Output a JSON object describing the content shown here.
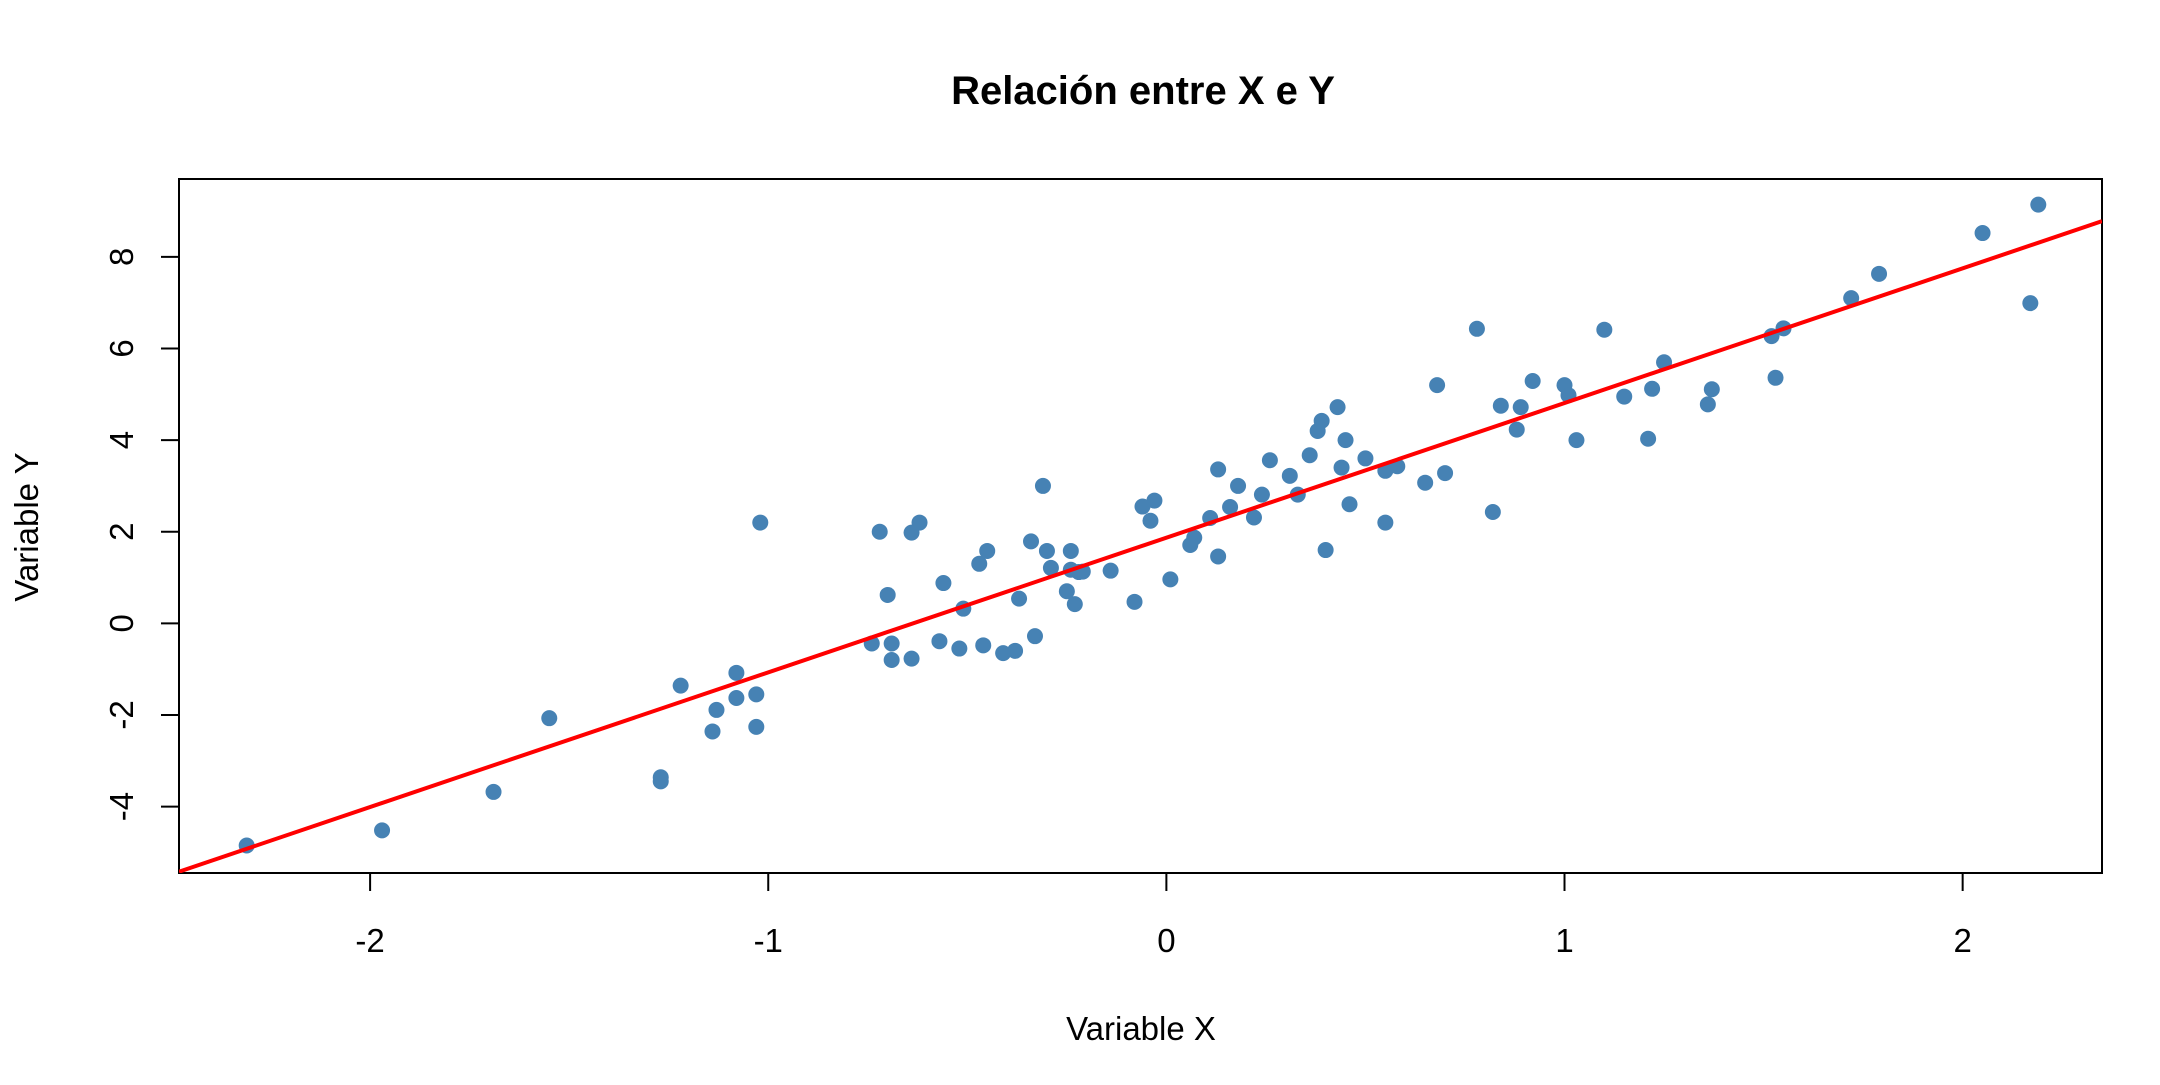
{
  "colors": {
    "points": "#4682B4",
    "regression_line": "#FF0000",
    "axes": "#000000",
    "background": "#FFFFFF"
  },
  "chart_data": {
    "type": "scatter",
    "title": "Relación entre X e Y",
    "xlabel": "Variable X",
    "ylabel": "Variable Y",
    "xlim": [
      -2.48,
      2.35
    ],
    "ylim": [
      -5.45,
      9.7
    ],
    "x_ticks": [
      -2,
      -1,
      0,
      1,
      2
    ],
    "x_tick_labels": [
      "-2",
      "-1",
      "0",
      "1",
      "2"
    ],
    "y_ticks": [
      -4,
      -2,
      0,
      2,
      4,
      6,
      8
    ],
    "y_tick_labels": [
      "-4",
      "-2",
      "0",
      "2",
      "4",
      "6",
      "8"
    ],
    "grid": false,
    "legend": "none",
    "regression_line": {
      "intercept": 1.87,
      "slope": 2.94
    },
    "series": [
      {
        "x": [
          -2.31,
          -1.97,
          -1.69,
          -1.55,
          -1.27,
          -1.27,
          -1.22,
          -1.14,
          -1.13,
          -1.08,
          -1.08,
          -1.03,
          -1.03,
          -1.02,
          -0.74,
          -0.72,
          -0.7,
          -0.69,
          -0.69,
          -0.64,
          -0.64,
          -0.62,
          -0.57,
          -0.56,
          -0.52,
          -0.51,
          -0.47,
          -0.46,
          -0.45,
          -0.41,
          -0.38,
          -0.37,
          -0.34,
          -0.33,
          -0.31,
          -0.3,
          -0.29,
          -0.25,
          -0.24,
          -0.24,
          -0.23,
          -0.22,
          -0.21,
          -0.14,
          -0.08,
          -0.06,
          -0.04,
          -0.03,
          0.01,
          0.06,
          0.07,
          0.11,
          0.13,
          0.13,
          0.16,
          0.18,
          0.22,
          0.24,
          0.26,
          0.31,
          0.33,
          0.36,
          0.38,
          0.39,
          0.4,
          0.43,
          0.44,
          0.45,
          0.46,
          0.5,
          0.55,
          0.55,
          0.58,
          0.65,
          0.68,
          0.7,
          0.78,
          0.82,
          0.84,
          0.88,
          0.89,
          0.92,
          1.0,
          1.01,
          1.03,
          1.1,
          1.15,
          1.21,
          1.22,
          1.25,
          1.36,
          1.37,
          1.52,
          1.53,
          1.55,
          1.72,
          1.79,
          2.05,
          2.17,
          2.19
        ],
        "y": [
          -4.85,
          -4.52,
          -3.68,
          -2.07,
          -3.36,
          -3.45,
          -1.36,
          -2.36,
          -1.89,
          -1.63,
          -1.08,
          -2.26,
          -1.55,
          2.2,
          -0.44,
          2.0,
          0.62,
          -0.44,
          -0.8,
          1.98,
          -0.77,
          2.2,
          -0.39,
          0.88,
          -0.55,
          0.32,
          1.3,
          -0.48,
          1.58,
          -0.65,
          -0.6,
          0.54,
          1.79,
          -0.28,
          3.0,
          1.58,
          1.21,
          0.7,
          1.58,
          1.17,
          0.42,
          1.12,
          1.13,
          1.15,
          0.47,
          2.55,
          2.24,
          2.68,
          0.96,
          1.71,
          1.87,
          2.3,
          3.36,
          1.46,
          2.54,
          3.0,
          2.31,
          2.81,
          3.56,
          3.22,
          2.81,
          3.67,
          4.2,
          4.42,
          1.6,
          4.72,
          3.4,
          4.0,
          2.6,
          3.6,
          3.33,
          2.2,
          3.43,
          3.07,
          5.2,
          3.28,
          6.43,
          2.43,
          4.75,
          4.23,
          4.72,
          5.29,
          5.2,
          4.98,
          4.0,
          6.41,
          4.95,
          4.03,
          5.12,
          5.7,
          4.78,
          5.11,
          6.27,
          5.36,
          6.44,
          7.1,
          7.63,
          8.52,
          6.99,
          9.14
        ]
      }
    ]
  }
}
